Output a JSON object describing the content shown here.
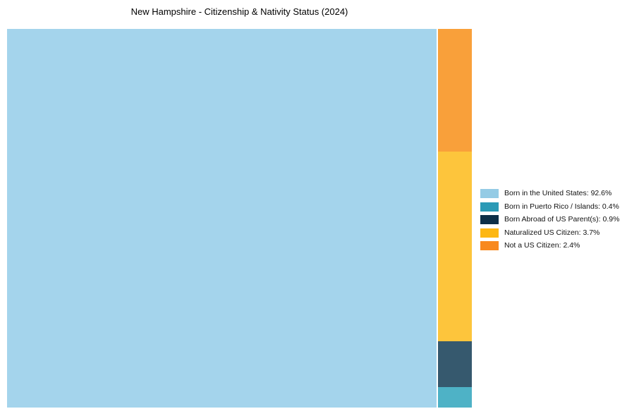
{
  "title": "New Hampshire - Citizenship & Nativity Status (2024)",
  "chart_data": {
    "type": "treemap",
    "title": "New Hampshire - Citizenship & Nativity Status (2024)",
    "unit": "percent",
    "total": 100,
    "legend_position": "right",
    "series": [
      {
        "label": "Born in the United States",
        "value": 92.6,
        "legend_color": "#94cbe5",
        "cell_color": "#a4d4ec"
      },
      {
        "label": "Born in Puerto Rico / Islands",
        "value": 0.4,
        "legend_color": "#2b9ab6",
        "cell_color": "#4eb2c6"
      },
      {
        "label": "Born Abroad of US Parent(s)",
        "value": 0.9,
        "legend_color": "#0d2f47",
        "cell_color": "#36596e"
      },
      {
        "label": "Naturalized US Citizen",
        "value": 3.7,
        "legend_color": "#fdb713",
        "cell_color": "#fdc53c"
      },
      {
        "label": "Not a US Citizen",
        "value": 2.4,
        "legend_color": "#f8891f",
        "cell_color": "#f9a03a"
      }
    ],
    "layout": {
      "main_cell": "Born in the United States",
      "column_order_top_to_bottom": [
        "Not a US Citizen",
        "Naturalized US Citizen",
        "Born Abroad of US Parent(s)",
        "Born in Puerto Rico / Islands"
      ]
    }
  },
  "legend": {
    "items": [
      {
        "text": "Born in the United States: 92.6%",
        "color": "#94cbe5"
      },
      {
        "text": "Born in Puerto Rico / Islands: 0.4%",
        "color": "#2b9ab6"
      },
      {
        "text": "Born Abroad of US Parent(s): 0.9%",
        "color": "#0d2f47"
      },
      {
        "text": "Naturalized US Citizen: 3.7%",
        "color": "#fdb713"
      },
      {
        "text": "Not a US Citizen: 2.4%",
        "color": "#f8891f"
      }
    ]
  }
}
